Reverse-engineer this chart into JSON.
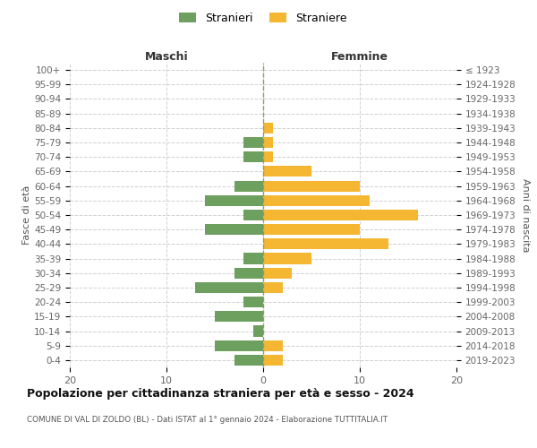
{
  "age_groups": [
    "0-4",
    "5-9",
    "10-14",
    "15-19",
    "20-24",
    "25-29",
    "30-34",
    "35-39",
    "40-44",
    "45-49",
    "50-54",
    "55-59",
    "60-64",
    "65-69",
    "70-74",
    "75-79",
    "80-84",
    "85-89",
    "90-94",
    "95-99",
    "100+"
  ],
  "birth_years": [
    "2019-2023",
    "2014-2018",
    "2009-2013",
    "2004-2008",
    "1999-2003",
    "1994-1998",
    "1989-1993",
    "1984-1988",
    "1979-1983",
    "1974-1978",
    "1969-1973",
    "1964-1968",
    "1959-1963",
    "1954-1958",
    "1949-1953",
    "1944-1948",
    "1939-1943",
    "1934-1938",
    "1929-1933",
    "1924-1928",
    "≤ 1923"
  ],
  "maschi": [
    3,
    5,
    1,
    5,
    2,
    7,
    3,
    2,
    0,
    6,
    2,
    6,
    3,
    0,
    2,
    2,
    0,
    0,
    0,
    0,
    0
  ],
  "femmine": [
    2,
    2,
    0,
    0,
    0,
    2,
    3,
    5,
    13,
    10,
    16,
    11,
    10,
    5,
    1,
    1,
    1,
    0,
    0,
    0,
    0
  ],
  "maschi_color": "#6d9f5f",
  "femmine_color": "#f5b731",
  "title": "Popolazione per cittadinanza straniera per età e sesso - 2024",
  "subtitle": "COMUNE DI VAL DI ZOLDO (BL) - Dati ISTAT al 1° gennaio 2024 - Elaborazione TUTTITALIA.IT",
  "header_left": "Maschi",
  "header_right": "Femmine",
  "ylabel_left": "Fasce di età",
  "ylabel_right": "Anni di nascita",
  "legend_male": "Stranieri",
  "legend_female": "Straniere",
  "xlim": 20,
  "background_color": "#ffffff",
  "grid_color": "#d0d0d0",
  "bar_height": 0.75
}
